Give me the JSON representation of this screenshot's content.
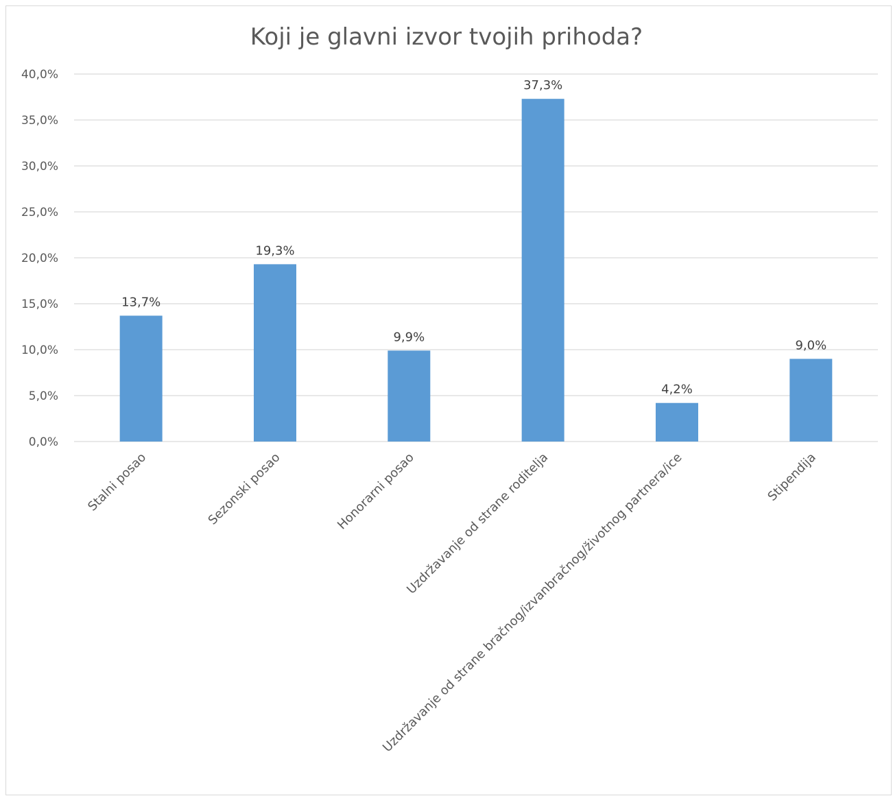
{
  "chart_data": {
    "type": "bar",
    "title": "Koji je glavni izvor tvojih prihoda?",
    "xlabel": "",
    "ylabel": "",
    "categories": [
      "Stalni posao",
      "Sezonski posao",
      "Honorarni posao",
      "Uzdržavanje od strane roditelja",
      "Uzdržavanje od strane bračnog/izvanbračnog/životnog partnera/ice",
      "Stipendija"
    ],
    "values": [
      13.7,
      19.3,
      9.9,
      37.3,
      4.2,
      9.0
    ],
    "data_labels": [
      "13,7%",
      "19,3%",
      "9,9%",
      "37,3%",
      "4,2%",
      "9,0%"
    ],
    "ylim": [
      0,
      40
    ],
    "y_ticks": [
      0,
      5,
      10,
      15,
      20,
      25,
      30,
      35,
      40
    ],
    "y_tick_labels": [
      "0,0%",
      "5,0%",
      "10,0%",
      "15,0%",
      "20,0%",
      "25,0%",
      "30,0%",
      "35,0%",
      "40,0%"
    ],
    "grid": true,
    "bar_color": "#5b9bd5",
    "grid_color": "#d9d9d9"
  }
}
